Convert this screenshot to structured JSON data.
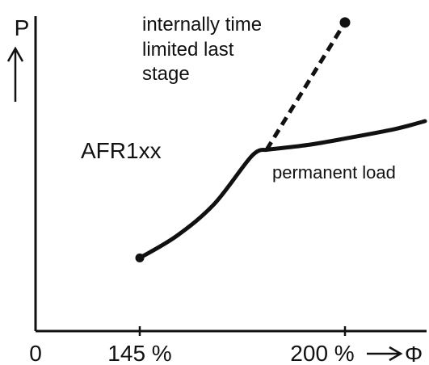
{
  "chart_data": {
    "type": "line",
    "title": "",
    "xlabel": "Φ",
    "ylabel": "P",
    "x_ticks": [
      {
        "value": 0,
        "label": "0"
      },
      {
        "value": 145,
        "label": "145 %"
      },
      {
        "value": 200,
        "label": "200 %"
      }
    ],
    "xlim": [
      0,
      216
    ],
    "ylim": [
      0,
      100
    ],
    "grid": false,
    "legend": "none",
    "device_label": "AFR1xx",
    "series": [
      {
        "name": "",
        "style": "solid",
        "points": [
          {
            "x": 145,
            "y": 23
          },
          {
            "x": 155,
            "y": 30
          },
          {
            "x": 165,
            "y": 40
          },
          {
            "x": 175,
            "y": 55
          },
          {
            "x": 179,
            "y": 57
          }
        ]
      },
      {
        "name": "permanent load",
        "style": "solid",
        "points": [
          {
            "x": 179,
            "y": 57
          },
          {
            "x": 190,
            "y": 58.5
          },
          {
            "x": 200,
            "y": 60.5
          },
          {
            "x": 210,
            "y": 63.5
          },
          {
            "x": 216,
            "y": 66
          }
        ]
      },
      {
        "name": "internally time limited last stage",
        "style": "dashed",
        "points": [
          {
            "x": 179,
            "y": 57
          },
          {
            "x": 200,
            "y": 97
          }
        ]
      }
    ],
    "markers": [
      {
        "x": 145,
        "y": 23
      },
      {
        "x": 200,
        "y": 97
      }
    ],
    "annotations": [
      {
        "lines": [
          "internally time",
          "limited last",
          "stage"
        ]
      },
      {
        "lines": [
          "permanent load"
        ]
      }
    ]
  }
}
